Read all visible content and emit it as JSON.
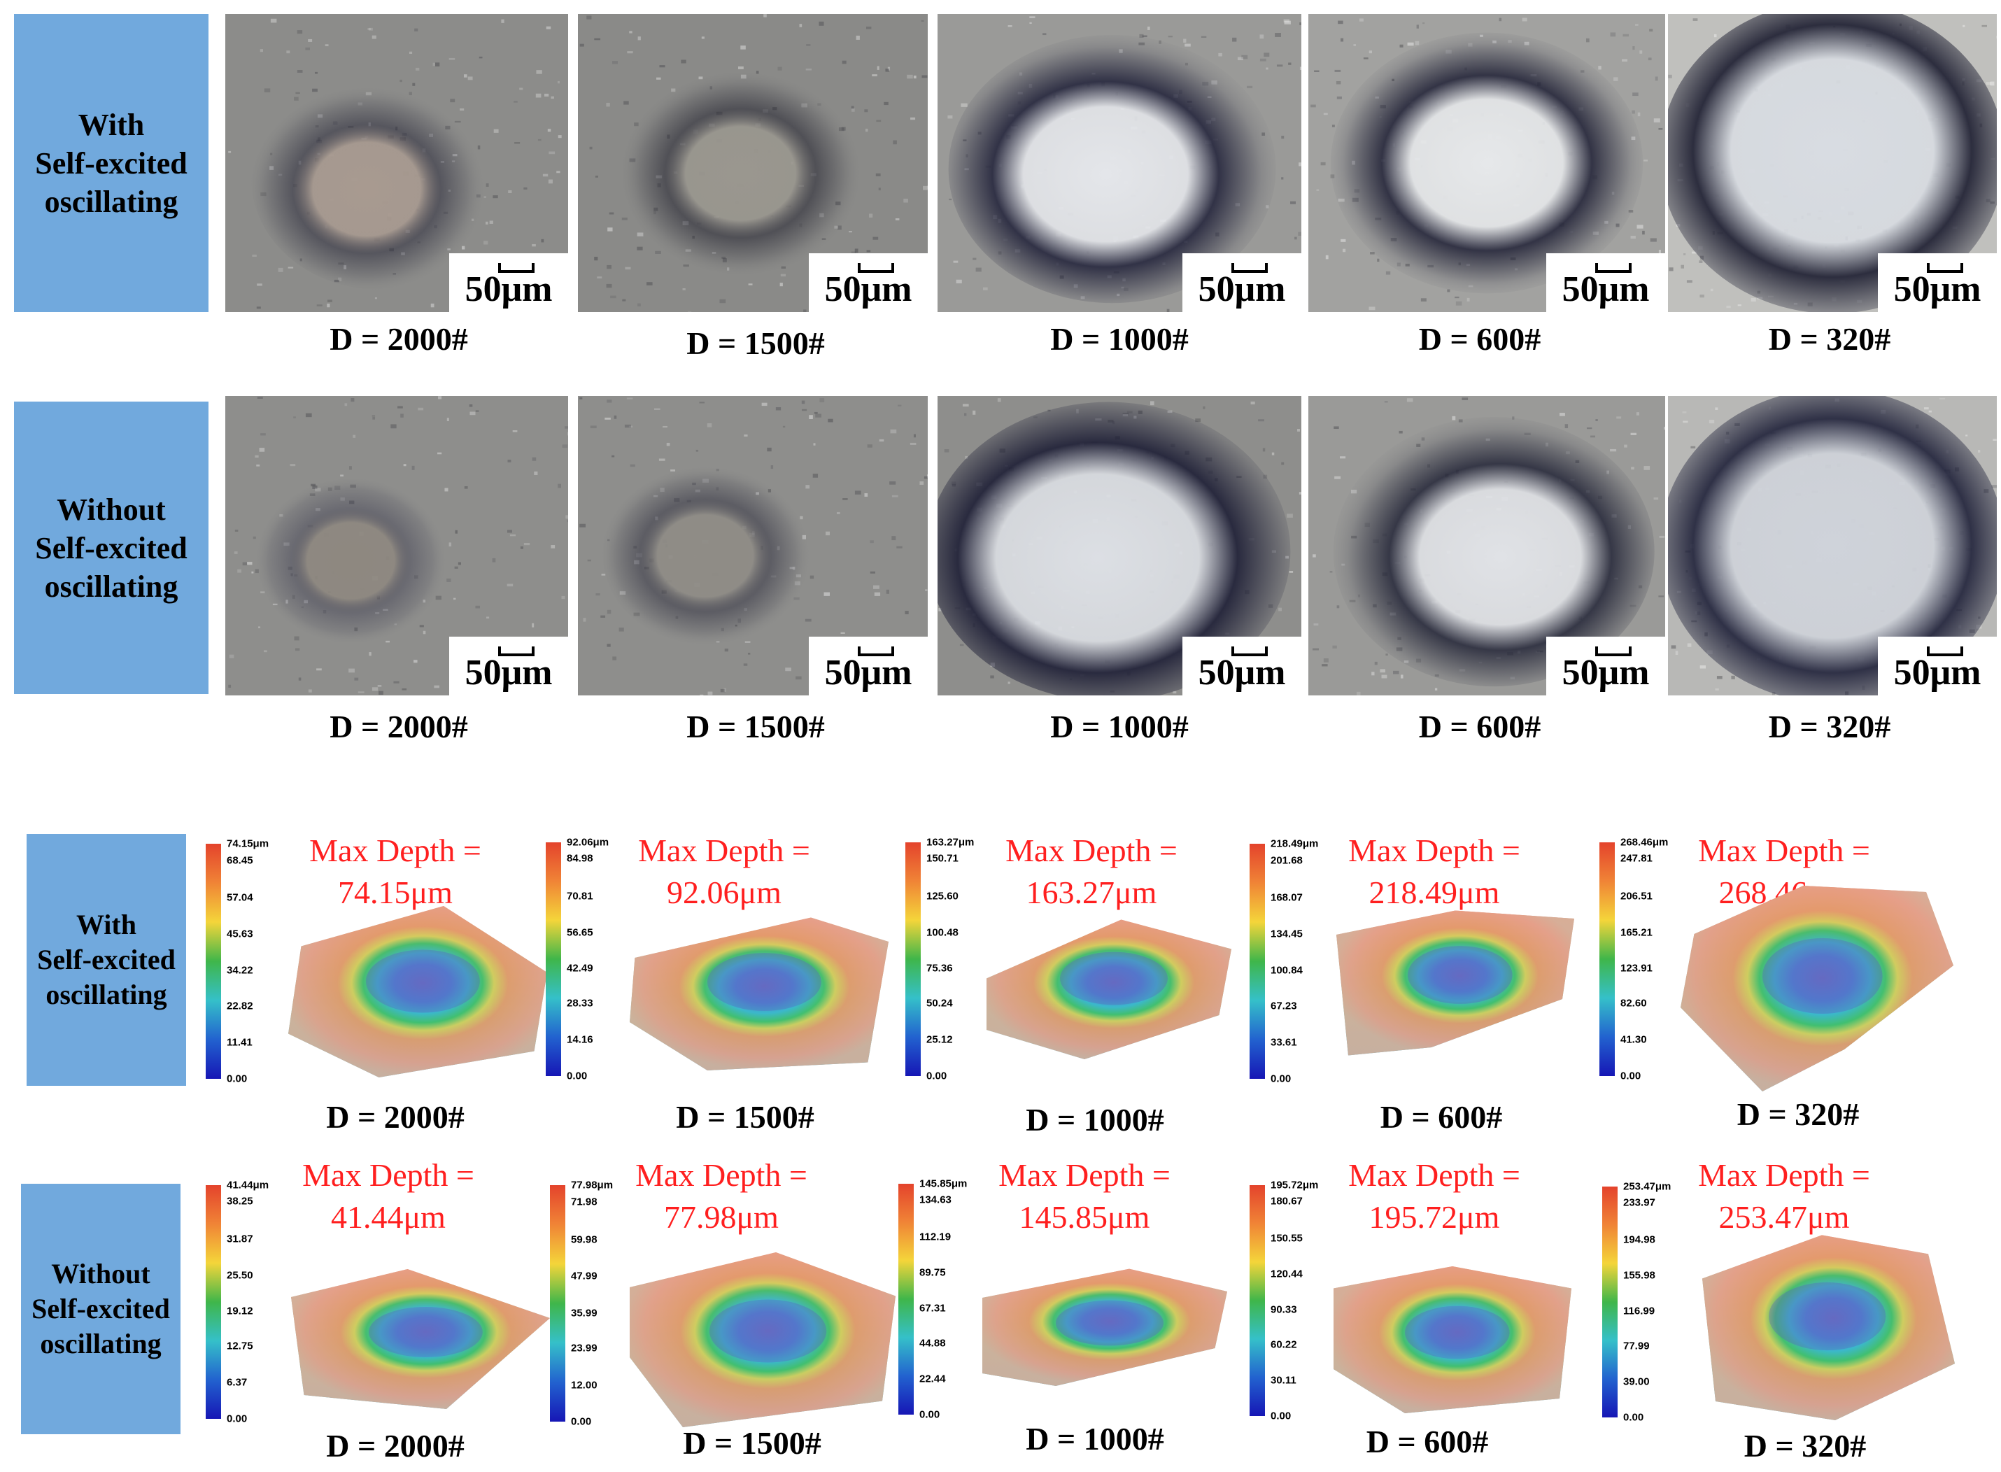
{
  "micro_rows": [
    {
      "label": "With\nSelf-excited\noscillating",
      "panels": [
        {
          "scale": "50μm",
          "d_label": "D = 2000#"
        },
        {
          "scale": "50μm",
          "d_label": "D = 1500#"
        },
        {
          "scale": "50μm",
          "d_label": "D = 1000#"
        },
        {
          "scale": "50μm",
          "d_label": "D = 600#"
        },
        {
          "scale": "50μm",
          "d_label": "D = 320#"
        }
      ]
    },
    {
      "label": "Without\nSelf-excited\noscillating",
      "panels": [
        {
          "scale": "50μm",
          "d_label": "D = 2000#"
        },
        {
          "scale": "50μm",
          "d_label": "D = 1500#"
        },
        {
          "scale": "50μm",
          "d_label": "D = 1000#"
        },
        {
          "scale": "50μm",
          "d_label": "D = 600#"
        },
        {
          "scale": "50μm",
          "d_label": "D = 320#"
        }
      ]
    }
  ],
  "profile_rows": [
    {
      "label": "With\nSelf-excited\noscillating",
      "panels": [
        {
          "max_depth": "Max Depth =",
          "max_value": "74.15μm",
          "d_label": "D = 2000#",
          "ticks": [
            "74.15μm",
            "68.45",
            "57.04",
            "45.63",
            "34.22",
            "22.82",
            "11.41",
            "0.00"
          ]
        },
        {
          "max_depth": "Max Depth =",
          "max_value": "92.06μm",
          "d_label": "D = 1500#",
          "ticks": [
            "92.06μm",
            "84.98",
            "70.81",
            "56.65",
            "42.49",
            "28.33",
            "14.16",
            "0.00"
          ]
        },
        {
          "max_depth": "Max Depth =",
          "max_value": "163.27μm",
          "d_label": "D = 1000#",
          "ticks": [
            "163.27μm",
            "150.71",
            "125.60",
            "100.48",
            "75.36",
            "50.24",
            "25.12",
            "0.00"
          ]
        },
        {
          "max_depth": "Max Depth =",
          "max_value": "218.49μm",
          "d_label": "D = 600#",
          "ticks": [
            "218.49μm",
            "201.68",
            "168.07",
            "134.45",
            "100.84",
            "67.23",
            "33.61",
            "0.00"
          ]
        },
        {
          "max_depth": "Max Depth =",
          "max_value": "268.46μm",
          "d_label": "D = 320#",
          "ticks": [
            "268.46μm",
            "247.81",
            "206.51",
            "165.21",
            "123.91",
            "82.60",
            "41.30",
            "0.00"
          ]
        }
      ]
    },
    {
      "label": "Without\nSelf-excited\noscillating",
      "panels": [
        {
          "max_depth": "Max Depth =",
          "max_value": "41.44μm",
          "d_label": "D = 2000#",
          "ticks": [
            "41.44μm",
            "38.25",
            "31.87",
            "25.50",
            "19.12",
            "12.75",
            "6.37",
            "0.00"
          ]
        },
        {
          "max_depth": "Max Depth =",
          "max_value": "77.98μm",
          "d_label": "D = 1500#",
          "ticks": [
            "77.98μm",
            "71.98",
            "59.98",
            "47.99",
            "35.99",
            "23.99",
            "12.00",
            "0.00"
          ]
        },
        {
          "max_depth": "Max Depth =",
          "max_value": "145.85μm",
          "d_label": "D = 1000#",
          "ticks": [
            "145.85μm",
            "134.63",
            "112.19",
            "89.75",
            "67.31",
            "44.88",
            "22.44",
            "0.00"
          ]
        },
        {
          "max_depth": "Max Depth =",
          "max_value": "195.72μm",
          "d_label": "D = 600#",
          "ticks": [
            "195.72μm",
            "180.67",
            "150.55",
            "120.44",
            "90.33",
            "60.22",
            "30.11",
            "0.00"
          ]
        },
        {
          "max_depth": "Max Depth =",
          "max_value": "253.47μm",
          "d_label": "D = 320#",
          "ticks": [
            "253.47μm",
            "233.97",
            "194.98",
            "155.98",
            "116.99",
            "77.99",
            "39.00",
            "0.00"
          ]
        }
      ]
    }
  ],
  "colors": {
    "label_box": "#71a9dd",
    "max_depth_text": "#ff1f1f"
  }
}
